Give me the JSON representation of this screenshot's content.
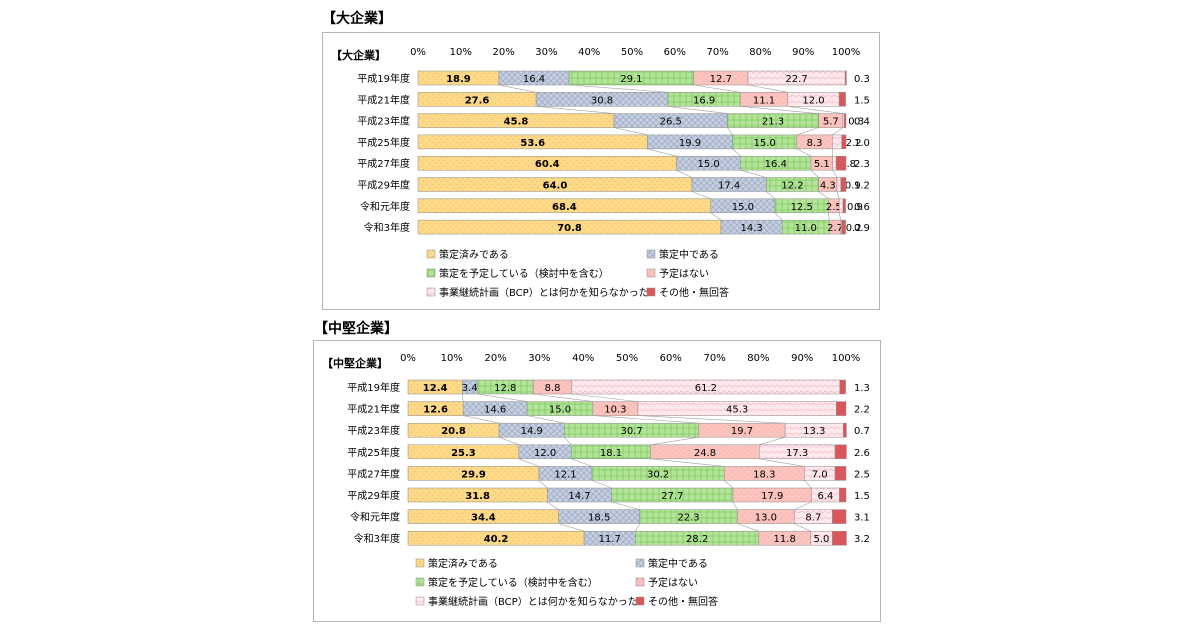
{
  "charts": [
    {
      "section_title": "【大企業】",
      "chart_data": {
        "type": "bar",
        "orientation": "horizontal",
        "stacked": true,
        "corner_label": "【大企業】",
        "xlim": [
          0,
          100
        ],
        "x_ticks": [
          "0%",
          "10%",
          "20%",
          "30%",
          "40%",
          "50%",
          "60%",
          "70%",
          "80%",
          "90%",
          "100%"
        ],
        "categories": [
          "平成19年度",
          "平成21年度",
          "平成23年度",
          "平成25年度",
          "平成27年度",
          "平成29年度",
          "令和元年度",
          "令和3年度"
        ],
        "series": [
          {
            "name": "策定済みである",
            "values": [
              18.9,
              27.6,
              45.8,
              53.6,
              60.4,
              64.0,
              68.4,
              70.8
            ]
          },
          {
            "name": "策定中である",
            "values": [
              16.4,
              30.8,
              26.5,
              19.9,
              15.0,
              17.4,
              15.0,
              14.3
            ]
          },
          {
            "name": "策定を予定している（検討中を含む）",
            "values": [
              29.1,
              16.9,
              21.3,
              15.0,
              16.4,
              12.2,
              12.5,
              11.0
            ]
          },
          {
            "name": "予定はない",
            "values": [
              12.7,
              11.1,
              5.7,
              8.3,
              5.1,
              4.3,
              2.5,
              2.7
            ]
          },
          {
            "name": "事業継続計画（BCP）とは何かを知らなかった",
            "values": [
              22.7,
              12.0,
              0.3,
              2.2,
              0.8,
              0.9,
              0.9,
              0.2
            ]
          },
          {
            "name": "その他・無回答",
            "values": [
              0.3,
              1.5,
              0.4,
              1.0,
              2.3,
              1.2,
              0.6,
              0.9
            ]
          }
        ],
        "bar_labels": [
          [
            "18.9",
            "16.4",
            "29.1",
            "12.7",
            "22.7",
            "0.3"
          ],
          [
            "27.6",
            "30.8",
            "16.9",
            "11.1",
            "12.0",
            "1.5"
          ],
          [
            "45.8",
            "26.5",
            "21.3",
            "5.7",
            "0.3",
            "0.4"
          ],
          [
            "53.6",
            "19.9",
            "15.0",
            "8.3",
            "2.2",
            "1.0"
          ],
          [
            "60.4",
            "15.0",
            "16.4",
            "5.1",
            "0.8",
            "2.3"
          ],
          [
            "64.0",
            "17.4",
            "12.2",
            "4.3",
            "0.9",
            "1.2"
          ],
          [
            "68.4",
            "15.0",
            "12.5",
            "2.5",
            "0.9",
            "0.6"
          ],
          [
            "70.8",
            "14.3",
            "11.0",
            "2.7",
            "0.2",
            "0.9"
          ]
        ],
        "legend_position": "bottom",
        "grid": false
      }
    },
    {
      "section_title": "【中堅企業】",
      "chart_data": {
        "type": "bar",
        "orientation": "horizontal",
        "stacked": true,
        "corner_label": "【中堅企業】",
        "xlim": [
          0,
          100
        ],
        "x_ticks": [
          "0%",
          "10%",
          "20%",
          "30%",
          "40%",
          "50%",
          "60%",
          "70%",
          "80%",
          "90%",
          "100%"
        ],
        "categories": [
          "平成19年度",
          "平成21年度",
          "平成23年度",
          "平成25年度",
          "平成27年度",
          "平成29年度",
          "令和元年度",
          "令和3年度"
        ],
        "series": [
          {
            "name": "策定済みである",
            "values": [
              12.4,
              12.6,
              20.8,
              25.3,
              29.9,
              31.8,
              34.4,
              40.2
            ]
          },
          {
            "name": "策定中である",
            "values": [
              3.4,
              14.6,
              14.9,
              12.0,
              12.1,
              14.7,
              18.5,
              11.7
            ]
          },
          {
            "name": "策定を予定している（検討中を含む）",
            "values": [
              12.8,
              15.0,
              30.7,
              18.1,
              30.2,
              27.7,
              22.3,
              28.2
            ]
          },
          {
            "name": "予定はない",
            "values": [
              8.8,
              10.3,
              19.7,
              24.8,
              18.3,
              17.9,
              13.0,
              11.8
            ]
          },
          {
            "name": "事業継続計画（BCP）とは何かを知らなかった",
            "values": [
              61.2,
              45.3,
              13.3,
              17.3,
              7.0,
              6.4,
              8.7,
              5.0
            ]
          },
          {
            "name": "その他・無回答",
            "values": [
              1.3,
              2.2,
              0.7,
              2.6,
              2.5,
              1.5,
              3.1,
              3.2
            ]
          }
        ],
        "bar_labels": [
          [
            "12.4",
            "3.4",
            "12.8",
            "8.8",
            "61.2",
            "1.3"
          ],
          [
            "12.6",
            "14.6",
            "15.0",
            "10.3",
            "45.3",
            "2.2"
          ],
          [
            "20.8",
            "14.9",
            "30.7",
            "19.7",
            "13.3",
            "0.7"
          ],
          [
            "25.3",
            "12.0",
            "18.1",
            "24.8",
            "17.3",
            "2.6"
          ],
          [
            "29.9",
            "12.1",
            "30.2",
            "18.3",
            "7.0",
            "2.5"
          ],
          [
            "31.8",
            "14.7",
            "27.7",
            "17.9",
            "6.4",
            "1.5"
          ],
          [
            "34.4",
            "18.5",
            "22.3",
            "13.0",
            "8.7",
            "3.1"
          ],
          [
            "40.2",
            "11.7",
            "28.2",
            "11.8",
            "5.0",
            "3.2"
          ]
        ],
        "legend_position": "bottom",
        "grid": false
      }
    }
  ],
  "series_colors": [
    "#fdd98a",
    "#c5cfe0",
    "#b4e49a",
    "#fbc4bf",
    "#fde8ec",
    "#d9565b"
  ],
  "series_pattern_colors": [
    "#f3c35e",
    "#9aa8c2",
    "#7fca5e",
    "#f4a39c",
    "#f2a9b6",
    "#b93a40"
  ]
}
